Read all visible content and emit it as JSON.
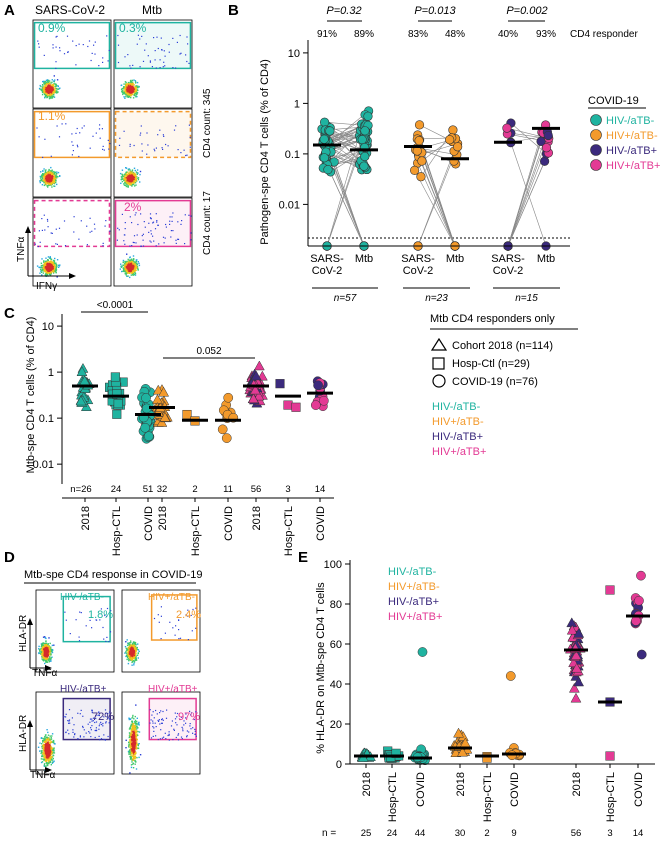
{
  "colors": {
    "g1": "#1fb3a0",
    "g2": "#f39a2c",
    "g3": "#3b2a7d",
    "g4": "#e33a94"
  },
  "panelA": {
    "letter": "A",
    "col_titles": [
      "SARS-CoV-2",
      "Mtb"
    ],
    "pct": [
      "0.9%",
      "0.3%",
      "1.1%",
      "",
      "",
      "2%"
    ],
    "right_labels": [
      "CD4 count: 345",
      "CD4 count: 17"
    ],
    "ylabel": "TNFα",
    "xlabel": "IFNγ"
  },
  "panelB": {
    "letter": "B",
    "ylabel": "Pathogen-spe CD4 T cells (% of CD4)",
    "yticks": [
      "10",
      "1",
      "0.1",
      "0.01"
    ],
    "pvalues": [
      "P=0.32",
      "P=0.013",
      "P=0.002"
    ],
    "responder_pcts": [
      "91%",
      "89%",
      "83%",
      "48%",
      "40%",
      "93%"
    ],
    "responder_label": "CD4 responder",
    "xlabels": [
      "SARS-\nCoV-2",
      "Mtb",
      "SARS-\nCoV-2",
      "Mtb",
      "SARS-\nCoV-2",
      "Mtb"
    ],
    "n": [
      "n=57",
      "n=23",
      "n=15"
    ],
    "legend_title": "COVID-19",
    "legend": [
      "HIV-/aTB-",
      "HIV+/aTB-",
      "HIV-/aTB+",
      "HIV+/aTB+"
    ]
  },
  "panelC": {
    "letter": "C",
    "ylabel": "Mtb-spe CD4 T cells (% of CD4)",
    "yticks": [
      "10",
      "1",
      "0.1",
      "0.01"
    ],
    "sig": [
      "<0.0001",
      "0.052"
    ],
    "n_labels": [
      "n=26",
      "24",
      "51",
      "32",
      "2",
      "11",
      "56",
      "3",
      "14"
    ],
    "xlabels": [
      "2018",
      "Hosp-CTL",
      "COVID",
      "2018",
      "Hosp-CTL",
      "COVID",
      "2018",
      "Hosp-CTL",
      "COVID"
    ],
    "legend_title": "Mtb CD4 responders only",
    "shape_legend": [
      "Cohort 2018 (n=114)",
      "Hosp-Ctl (n=29)",
      "COVID-19 (n=76)"
    ],
    "group_legend": [
      "HIV-/aTB-",
      "HIV+/aTB-",
      "HIV-/aTB+",
      "HIV+/aTB+"
    ]
  },
  "panelD": {
    "letter": "D",
    "title": "Mtb-spe CD4 response in COVID-19",
    "group_labels": [
      "HIV-/aTB-",
      "HIV+/aTB-",
      "HIV-/aTB+",
      "HIV+/aTB+"
    ],
    "pct": [
      "1.8%",
      "2.4%",
      "72%",
      "97%"
    ],
    "ylabel": "HLA-DR",
    "xlabel": "TNFα"
  },
  "panelE": {
    "letter": "E",
    "ylabel": "% HLA-DR on Mtb-spe CD4 T cells",
    "yticks": [
      "100",
      "80",
      "60",
      "40",
      "20",
      "0"
    ],
    "xlabels": [
      "2018",
      "Hosp-CTL",
      "COVID",
      "2018",
      "Hosp-CTL",
      "COVID",
      "2018",
      "Hosp-CTL",
      "COVID"
    ],
    "n_prefix": "n =",
    "n_labels": [
      "25",
      "24",
      "44",
      "30",
      "2",
      "9",
      "56",
      "3",
      "14"
    ],
    "legend": [
      "HIV-/aTB-",
      "HIV+/aTB-",
      "HIV-/aTB+",
      "HIV+/aTB+"
    ]
  },
  "chart_data": [
    {
      "type": "scatter",
      "panel": "B",
      "log_y": true,
      "ylim": [
        0.002,
        15
      ],
      "categories": [
        "SARS-CoV-2",
        "Mtb",
        "SARS-CoV-2",
        "Mtb",
        "SARS-CoV-2",
        "Mtb"
      ],
      "medians": [
        0.15,
        0.12,
        0.14,
        0.08,
        0.17,
        0.32
      ],
      "groups": [
        "HIV-/aTB-",
        "HIV-/aTB-",
        "HIV+/aTB-",
        "HIV+/aTB-",
        "HIV-/aTB+ / HIV+/aTB+",
        "HIV-/aTB+ / HIV+/aTB+"
      ],
      "n": [
        57,
        57,
        23,
        23,
        15,
        15
      ],
      "responder_percent": [
        91,
        89,
        83,
        48,
        40,
        93
      ],
      "p_values": [
        0.32,
        0.013,
        0.002
      ]
    },
    {
      "type": "scatter",
      "panel": "C",
      "log_y": true,
      "ylim": [
        0.005,
        15
      ],
      "categories": [
        "2018",
        "Hosp-CTL",
        "COVID",
        "2018",
        "Hosp-CTL",
        "COVID",
        "2018",
        "Hosp-CTL",
        "COVID"
      ],
      "n": [
        26,
        24,
        51,
        32,
        2,
        11,
        56,
        3,
        14
      ],
      "medians": [
        0.5,
        0.3,
        0.12,
        0.17,
        0.09,
        0.09,
        0.5,
        0.3,
        0.35
      ],
      "comparisons": [
        {
          "label": "<0.0001"
        },
        {
          "label": "0.052"
        }
      ]
    },
    {
      "type": "scatter",
      "panel": "E",
      "ylim": [
        0,
        100
      ],
      "categories": [
        "2018",
        "Hosp-CTL",
        "COVID",
        "2018",
        "Hosp-CTL",
        "COVID",
        "2018",
        "Hosp-CTL",
        "COVID"
      ],
      "n": [
        25,
        24,
        44,
        30,
        2,
        9,
        56,
        3,
        14
      ],
      "medians": [
        4,
        4,
        3,
        8,
        4,
        5,
        57,
        31,
        74
      ]
    }
  ]
}
